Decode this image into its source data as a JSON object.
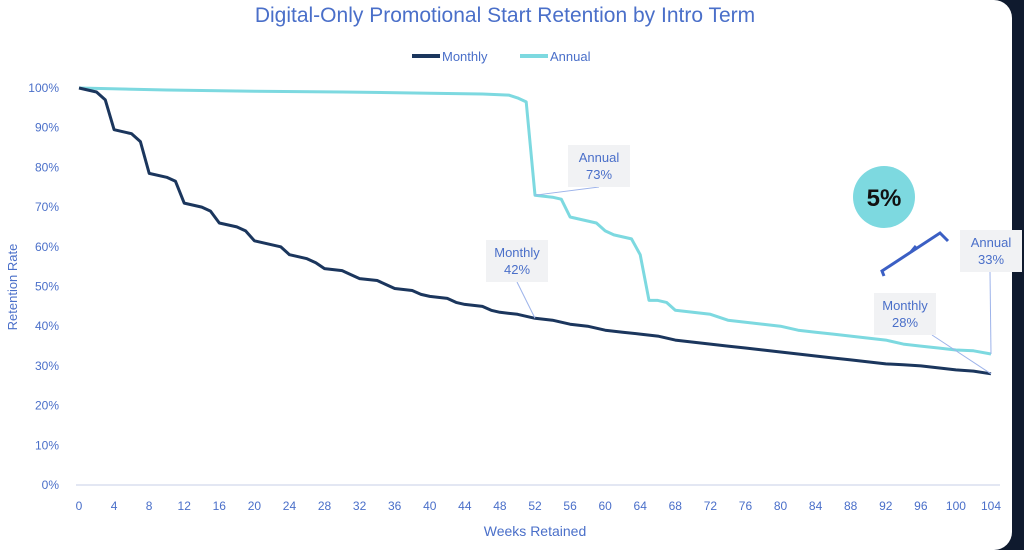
{
  "chart_data": {
    "type": "line",
    "title": "Digital-Only Promotional Start Retention by Intro Term",
    "xlabel": "Weeks Retained",
    "ylabel": "Retention Rate",
    "xlim": [
      0,
      104
    ],
    "ylim": [
      0,
      100
    ],
    "x_ticks": [
      "0",
      "4",
      "8",
      "12",
      "16",
      "20",
      "24",
      "28",
      "32",
      "36",
      "40",
      "44",
      "48",
      "52",
      "56",
      "60",
      "64",
      "68",
      "72",
      "76",
      "80",
      "84",
      "88",
      "92",
      "96",
      "100",
      "104"
    ],
    "y_ticks": [
      "0%",
      "10%",
      "20%",
      "30%",
      "40%",
      "50%",
      "60%",
      "70%",
      "80%",
      "90%",
      "100%"
    ],
    "legend": {
      "placement": "top-center",
      "entries": [
        "Monthly",
        "Annual"
      ]
    },
    "grid": "baseline only",
    "series": [
      {
        "name": "Monthly",
        "color": "#1b365d",
        "x": [
          0,
          2,
          3,
          4,
          5,
          6,
          7,
          8,
          10,
          11,
          12,
          14,
          15,
          16,
          18,
          19,
          20,
          22,
          23,
          24,
          26,
          27,
          28,
          30,
          31,
          32,
          34,
          35,
          36,
          38,
          39,
          40,
          42,
          43,
          44,
          46,
          47,
          48,
          50,
          51,
          52,
          54,
          55,
          56,
          58,
          60,
          62,
          64,
          66,
          68,
          70,
          72,
          74,
          76,
          78,
          80,
          82,
          84,
          86,
          88,
          90,
          92,
          94,
          96,
          98,
          100,
          102,
          104
        ],
        "y": [
          100,
          99,
          97,
          89.5,
          89,
          88.5,
          86.5,
          78.5,
          77.5,
          76.5,
          71,
          70,
          69,
          66,
          65,
          64,
          61.5,
          60.5,
          60,
          58,
          57,
          56,
          54.5,
          54,
          53,
          52,
          51.5,
          50.5,
          49.5,
          49,
          48,
          47.5,
          47,
          46,
          45.5,
          45,
          44,
          43.5,
          43,
          42.5,
          42,
          41.5,
          41,
          40.5,
          40,
          39,
          38.5,
          38,
          37.5,
          36.5,
          36,
          35.5,
          35,
          34.5,
          34,
          33.5,
          33,
          32.5,
          32,
          31.5,
          31,
          30.5,
          30.3,
          30,
          29.5,
          29,
          28.7,
          28
        ]
      },
      {
        "name": "Annual",
        "color": "#7dd9e0",
        "x": [
          0,
          10,
          20,
          30,
          40,
          46,
          49,
          50,
          51,
          52,
          54,
          55,
          56,
          57,
          58,
          59,
          60,
          61,
          62,
          63,
          64,
          65,
          66,
          67,
          68,
          70,
          72,
          74,
          76,
          78,
          80,
          82,
          84,
          86,
          88,
          90,
          92,
          94,
          96,
          98,
          100,
          102,
          104
        ],
        "y": [
          100,
          99.5,
          99.2,
          99,
          98.7,
          98.5,
          98.2,
          97.5,
          96.5,
          73,
          72.5,
          72,
          67.5,
          67,
          66.5,
          66,
          64,
          63,
          62.5,
          62,
          58,
          46.5,
          46.5,
          46,
          44,
          43.5,
          43,
          41.5,
          41,
          40.5,
          40,
          39,
          38.5,
          38,
          37.5,
          37,
          36.5,
          35.5,
          35,
          34.5,
          34,
          33.8,
          33
        ]
      }
    ],
    "annotations": [
      {
        "label": "Annual",
        "value": "73%",
        "x": 52,
        "y": 73
      },
      {
        "label": "Monthly",
        "value": "42%",
        "x": 52,
        "y": 42
      },
      {
        "label": "Monthly",
        "value": "28%",
        "x": 104,
        "y": 28
      },
      {
        "label": "Annual",
        "value": "33%",
        "x": 104,
        "y": 33
      }
    ],
    "gap_badge": "5%"
  }
}
